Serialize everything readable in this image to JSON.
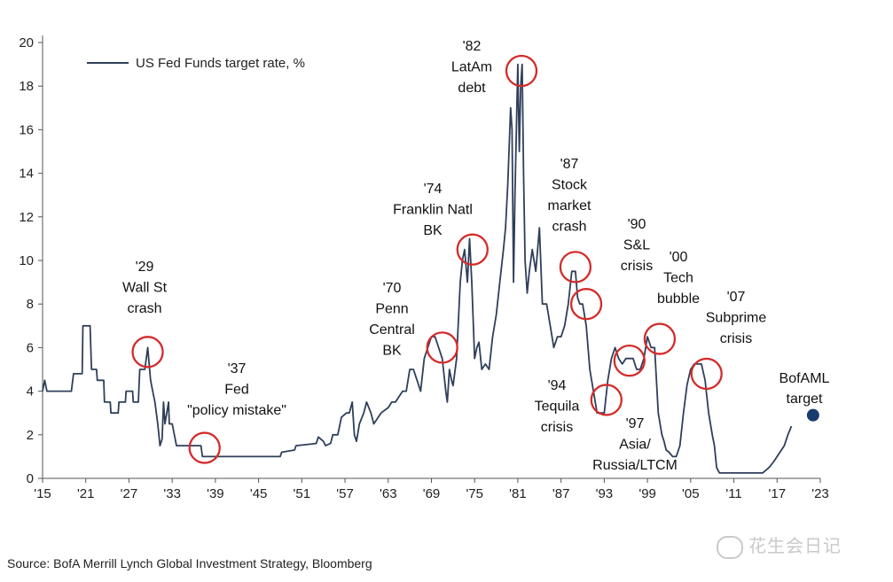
{
  "chart_data": {
    "type": "line",
    "title": "",
    "xlabel": "",
    "ylabel": "",
    "legend": "top-left",
    "ylim": [
      0,
      20
    ],
    "xlim": [
      1915,
      2023
    ],
    "y_ticks": [
      0,
      2,
      4,
      6,
      8,
      10,
      12,
      14,
      16,
      18,
      20
    ],
    "x_tick_labels": [
      "'15",
      "'21",
      "'27",
      "'33",
      "'39",
      "'45",
      "'51",
      "'57",
      "'63",
      "'69",
      "'75",
      "'81",
      "'87",
      "'93",
      "'99",
      "'05",
      "'11",
      "'17",
      "'23"
    ],
    "series": [
      {
        "name": "US Fed Funds target rate, %",
        "color": "#2f3f5b",
        "x": [
          1915,
          1915.3,
          1915.6,
          1919,
          1919.3,
          1920.5,
          1920.6,
          1921.6,
          1921.8,
          1922.5,
          1922.6,
          1923.5,
          1923.6,
          1924.4,
          1924.5,
          1925.5,
          1925.6,
          1926.5,
          1926.6,
          1927.5,
          1927.6,
          1928.3,
          1928.5,
          1929.2,
          1929.6,
          1930,
          1930.3,
          1930.6,
          1931,
          1931.3,
          1931.6,
          1931.8,
          1932,
          1932.5,
          1932.6,
          1933,
          1933.3,
          1933.6,
          1934,
          1937,
          1937.2,
          1942,
          1942.2,
          1946,
          1946.2,
          1948,
          1948.2,
          1950,
          1950.2,
          1953,
          1953.3,
          1954,
          1954.3,
          1955,
          1955.3,
          1956,
          1956.5,
          1957.2,
          1957.6,
          1958,
          1958.3,
          1958.6,
          1959,
          1959.6,
          1960,
          1960.6,
          1961,
          1962,
          1963,
          1963.5,
          1964,
          1965,
          1965.5,
          1966,
          1966.5,
          1967,
          1967.5,
          1968,
          1968.5,
          1969,
          1969.5,
          1970,
          1970.5,
          1971,
          1971.2,
          1971.5,
          1971.8,
          1972,
          1972.5,
          1973,
          1973.3,
          1973.6,
          1974,
          1974.3,
          1974.6,
          1975,
          1975.3,
          1975.6,
          1976,
          1976.5,
          1977,
          1977.5,
          1978,
          1978.5,
          1979,
          1979.3,
          1979.6,
          1980,
          1980.2,
          1980.4,
          1980.6,
          1980.8,
          1981,
          1981.2,
          1981.4,
          1981.6,
          1981.8,
          1982,
          1982.3,
          1982.6,
          1983,
          1983.5,
          1984,
          1984.4,
          1984.8,
          1985,
          1985.5,
          1986,
          1986.5,
          1987,
          1987.5,
          1988,
          1988.5,
          1989,
          1989.3,
          1989.6,
          1990,
          1990.5,
          1991,
          1991.5,
          1992,
          1992.5,
          1993,
          1993.5,
          1994,
          1994.5,
          1995,
          1995.5,
          1996,
          1996.5,
          1997,
          1997.5,
          1998,
          1998.5,
          1999,
          1999.5,
          2000,
          2000.5,
          2001,
          2001.3,
          2001.6,
          2002,
          2002.5,
          2003,
          2003.5,
          2004,
          2004.5,
          2005,
          2005.5,
          2006,
          2006.5,
          2007,
          2007.5,
          2008,
          2008.3,
          2008.6,
          2009,
          2009.5,
          2012,
          2015,
          2015.9,
          2016.5,
          2017,
          2017.5,
          2018,
          2018.5,
          2019
        ],
        "values": [
          4,
          4.5,
          4,
          4,
          4.8,
          4.8,
          7,
          7,
          5,
          5,
          4.5,
          4.5,
          3.5,
          3.5,
          3,
          3,
          3.5,
          3.5,
          4,
          4,
          3.5,
          3.5,
          5,
          5,
          6,
          4.5,
          4,
          3.5,
          2.5,
          1.5,
          1.8,
          3.5,
          2.5,
          3.5,
          2.5,
          2.5,
          2,
          1.5,
          1.5,
          1.5,
          1,
          1,
          1,
          1,
          1,
          1,
          1.2,
          1.3,
          1.5,
          1.6,
          1.9,
          1.7,
          1.5,
          1.6,
          2,
          2,
          2.8,
          3,
          3,
          3.5,
          2,
          1.7,
          2.5,
          3,
          3.5,
          3,
          2.5,
          3,
          3.25,
          3.5,
          3.5,
          4,
          4,
          5,
          5,
          4.5,
          4,
          5.5,
          6,
          6.5,
          6.5,
          6,
          5.5,
          4,
          3.5,
          5,
          4.5,
          4.25,
          5.5,
          9,
          10,
          10.5,
          9,
          11,
          9,
          5.5,
          6,
          6.25,
          5,
          5.25,
          5,
          6.5,
          7.5,
          9,
          10.5,
          11.5,
          13.5,
          17,
          16,
          9,
          13,
          16,
          19,
          15,
          18,
          19,
          14,
          10,
          8.5,
          9.5,
          10.5,
          9.5,
          11.5,
          8,
          8,
          8,
          7,
          6,
          6.5,
          6.5,
          7,
          8,
          9.5,
          9.5,
          8.3,
          8,
          8,
          7,
          5,
          4,
          3,
          3,
          3,
          4.5,
          5.5,
          6,
          5.5,
          5.25,
          5.5,
          5.5,
          5.5,
          5,
          5,
          5.5,
          6.5,
          6,
          6,
          3,
          2,
          1.7,
          1.3,
          1.2,
          1,
          1,
          1.5,
          3,
          4.3,
          5,
          5.25,
          5.25,
          5.25,
          4.5,
          3,
          2,
          1.5,
          0.5,
          0.25,
          0.25,
          0.25,
          0.25,
          0.5,
          0.75,
          1,
          1.25,
          1.5,
          2,
          2.4
        ]
      }
    ],
    "markers": [
      {
        "label": "BofAML target",
        "x": 2022,
        "y": 2.9,
        "color": "#1a3a6e"
      }
    ],
    "annotations": [
      {
        "lines": [
          "'29",
          "Wall St",
          "crash"
        ],
        "circle": {
          "x": 1929.6,
          "y": 5.8
        }
      },
      {
        "lines": [
          "'37",
          "Fed",
          "\"policy mistake\""
        ],
        "circle": {
          "x": 1937.5,
          "y": 1.4
        }
      },
      {
        "lines": [
          "'70",
          "Penn",
          "Central",
          "BK"
        ],
        "circle": {
          "x": 1970.5,
          "y": 6.0
        }
      },
      {
        "lines": [
          "'74",
          "Franklin Natl",
          "BK"
        ],
        "circle": {
          "x": 1974.7,
          "y": 10.5
        }
      },
      {
        "lines": [
          "'82",
          "LatAm",
          "debt"
        ],
        "circle": {
          "x": 1981.5,
          "y": 18.7
        }
      },
      {
        "lines": [
          "'87",
          "Stock",
          "market",
          "crash"
        ],
        "circle": {
          "x": 1989.0,
          "y": 9.7
        }
      },
      {
        "lines": [],
        "circle": {
          "x": 1990.5,
          "y": 8.0
        }
      },
      {
        "lines": [
          "'90",
          "S&L",
          "crisis"
        ],
        "circle": {
          "x": 1996.5,
          "y": 5.4
        }
      },
      {
        "lines": [
          "'94",
          "Tequila",
          "crisis"
        ],
        "circle": {
          "x": 1993.3,
          "y": 3.6
        }
      },
      {
        "lines": [
          "'97",
          "Asia/",
          "Russia/LTCM"
        ],
        "circle": null
      },
      {
        "lines": [
          "'00",
          "Tech",
          "bubble"
        ],
        "circle": {
          "x": 2000.7,
          "y": 6.4
        }
      },
      {
        "lines": [
          "'07",
          "Subprime",
          "crisis"
        ],
        "circle": {
          "x": 2007.2,
          "y": 4.8
        }
      }
    ]
  },
  "footer": {
    "source": "Source: BofA Merrill Lynch Global Investment Strategy, Bloomberg",
    "watermark": "花生会日记"
  }
}
